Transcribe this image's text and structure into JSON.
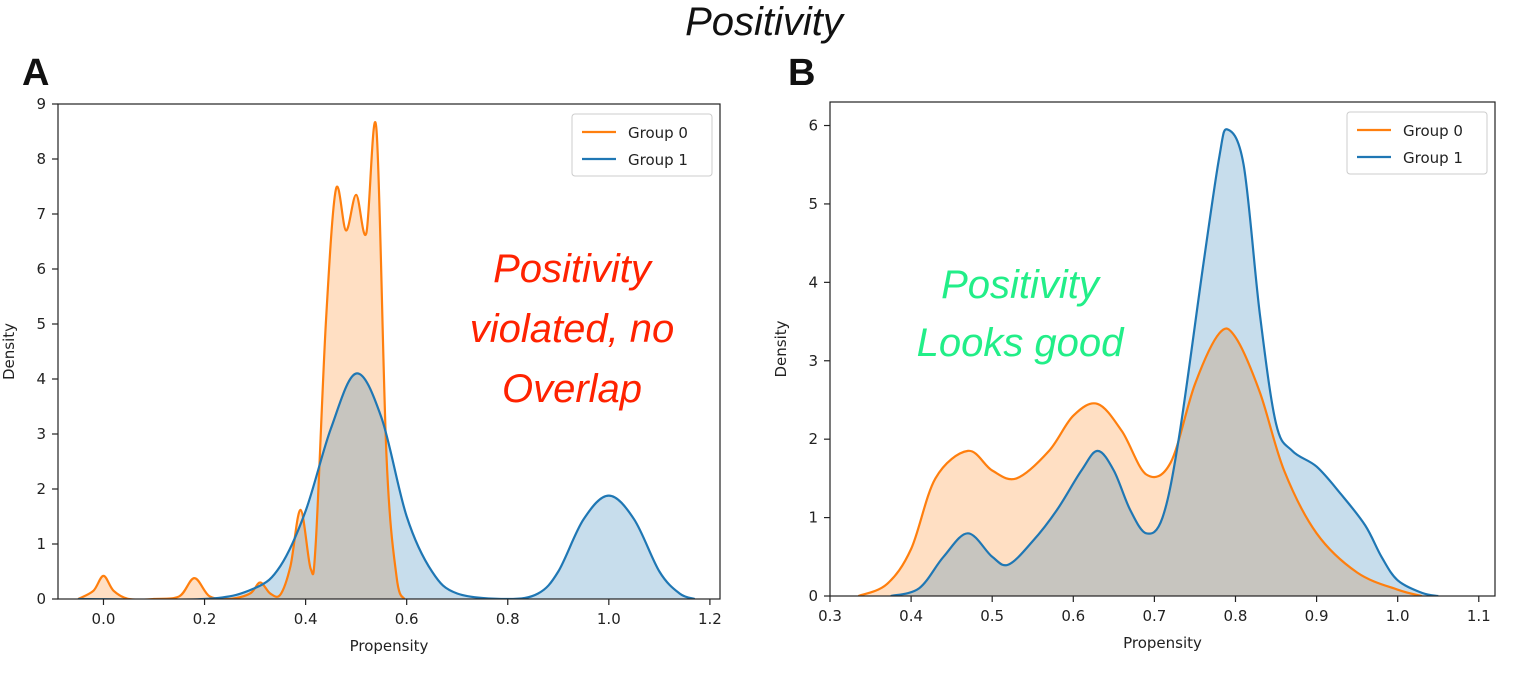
{
  "page": {
    "title": "Positivity"
  },
  "chart_data": [
    {
      "panel": "A",
      "type": "area",
      "xlabel": "Propensity",
      "ylabel": "Density",
      "xlim": [
        -0.09,
        1.22
      ],
      "ylim": [
        0,
        9
      ],
      "xticks": [
        "0.0",
        "0.2",
        "0.4",
        "0.6",
        "0.8",
        "1.0",
        "1.2"
      ],
      "yticks": [
        "0",
        "1",
        "2",
        "3",
        "4",
        "5",
        "6",
        "7",
        "8",
        "9"
      ],
      "legend": {
        "placement": "top-right",
        "entries": [
          "Group 0",
          "Group 1"
        ]
      },
      "annotation": {
        "lines": [
          "Positivity",
          "violated, no",
          "Overlap"
        ],
        "color": "#ff2200"
      },
      "series": [
        {
          "name": "Group 0",
          "color": "#ff7f0e",
          "x": [
            -0.05,
            -0.02,
            0.0,
            0.02,
            0.05,
            0.1,
            0.15,
            0.18,
            0.21,
            0.25,
            0.29,
            0.31,
            0.33,
            0.35,
            0.37,
            0.39,
            0.41,
            0.42,
            0.44,
            0.46,
            0.48,
            0.5,
            0.52,
            0.54,
            0.56,
            0.58,
            0.595
          ],
          "y": [
            0,
            0.15,
            0.42,
            0.15,
            0,
            0,
            0.05,
            0.38,
            0.05,
            0,
            0.1,
            0.3,
            0.1,
            0.08,
            0.6,
            1.62,
            0.55,
            1.0,
            5.0,
            7.45,
            6.7,
            7.35,
            6.65,
            8.55,
            2.6,
            0.4,
            0
          ]
        },
        {
          "name": "Group 1",
          "color": "#1f77b4",
          "x": [
            -0.05,
            0.2,
            0.3,
            0.35,
            0.4,
            0.45,
            0.5,
            0.55,
            0.6,
            0.65,
            0.7,
            0.8,
            0.86,
            0.9,
            0.95,
            1.0,
            1.05,
            1.1,
            1.14,
            1.17
          ],
          "y": [
            0,
            0,
            0.2,
            0.6,
            1.6,
            3.1,
            4.1,
            3.3,
            1.5,
            0.5,
            0.1,
            0,
            0.1,
            0.5,
            1.45,
            1.88,
            1.45,
            0.5,
            0.1,
            0
          ]
        }
      ]
    },
    {
      "panel": "B",
      "type": "area",
      "xlabel": "Propensity",
      "ylabel": "Density",
      "xlim": [
        0.3,
        1.12
      ],
      "ylim": [
        0,
        6.3
      ],
      "xticks": [
        "0.3",
        "0.4",
        "0.5",
        "0.6",
        "0.7",
        "0.8",
        "0.9",
        "1.0",
        "1.1"
      ],
      "yticks": [
        "0",
        "1",
        "2",
        "3",
        "4",
        "5",
        "6"
      ],
      "legend": {
        "placement": "top-right",
        "entries": [
          "Group 0",
          "Group 1"
        ]
      },
      "annotation": {
        "lines": [
          "Positivity",
          "Looks good"
        ],
        "color": "#22ee88"
      },
      "series": [
        {
          "name": "Group 0",
          "color": "#ff7f0e",
          "x": [
            0.335,
            0.37,
            0.4,
            0.43,
            0.47,
            0.5,
            0.53,
            0.57,
            0.6,
            0.63,
            0.66,
            0.69,
            0.72,
            0.75,
            0.78,
            0.8,
            0.83,
            0.86,
            0.9,
            0.95,
            1.0,
            1.03
          ],
          "y": [
            0,
            0.15,
            0.6,
            1.5,
            1.85,
            1.6,
            1.5,
            1.85,
            2.3,
            2.45,
            2.1,
            1.55,
            1.7,
            2.7,
            3.35,
            3.3,
            2.6,
            1.6,
            0.8,
            0.3,
            0.08,
            0
          ]
        },
        {
          "name": "Group 1",
          "color": "#1f77b4",
          "x": [
            0.375,
            0.41,
            0.44,
            0.47,
            0.5,
            0.52,
            0.55,
            0.58,
            0.61,
            0.63,
            0.65,
            0.67,
            0.69,
            0.71,
            0.73,
            0.76,
            0.78,
            0.79,
            0.81,
            0.83,
            0.85,
            0.87,
            0.9,
            0.93,
            0.96,
            0.98,
            1.0,
            1.03,
            1.05
          ],
          "y": [
            0,
            0.1,
            0.5,
            0.8,
            0.5,
            0.4,
            0.7,
            1.1,
            1.6,
            1.85,
            1.6,
            1.1,
            0.8,
            1.0,
            2.0,
            4.2,
            5.6,
            5.95,
            5.5,
            3.6,
            2.2,
            1.85,
            1.65,
            1.3,
            0.9,
            0.5,
            0.2,
            0.04,
            0
          ]
        }
      ]
    }
  ]
}
